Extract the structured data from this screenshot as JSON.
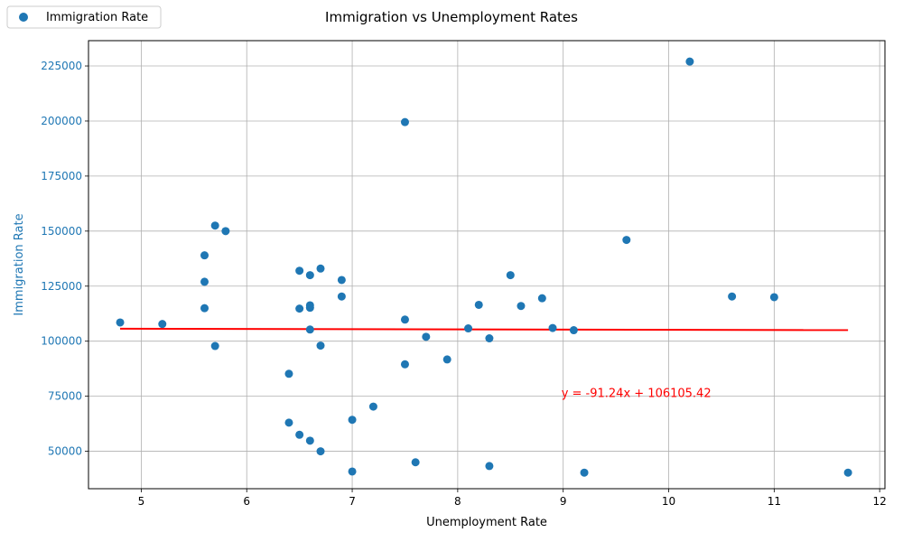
{
  "chart_data": {
    "type": "scatter",
    "title": "Immigration vs Unemployment Rates",
    "xlabel": "Unemployment Rate",
    "ylabel": "Immigration Rate",
    "xlim": [
      4.5,
      12.05
    ],
    "ylim": [
      33000,
      236500
    ],
    "xticks": [
      5,
      6,
      7,
      8,
      9,
      10,
      11,
      12
    ],
    "yticks": [
      50000,
      75000,
      100000,
      125000,
      150000,
      175000,
      200000,
      225000
    ],
    "grid": true,
    "legend": {
      "position": "top-left",
      "label": "Immigration Rate"
    },
    "colors": {
      "points": "#1f77b4",
      "trend": "#ff0000",
      "ylabel": "#1f77b4",
      "grid": "#b0b0b0"
    },
    "series": [
      {
        "name": "Immigration Rate",
        "points": [
          [
            4.8,
            108500
          ],
          [
            5.2,
            107800
          ],
          [
            5.6,
            139000
          ],
          [
            5.6,
            127000
          ],
          [
            5.6,
            115000
          ],
          [
            5.7,
            152500
          ],
          [
            5.7,
            97800
          ],
          [
            5.8,
            150000
          ],
          [
            6.4,
            85200
          ],
          [
            6.4,
            63000
          ],
          [
            6.5,
            132000
          ],
          [
            6.5,
            114800
          ],
          [
            6.5,
            57500
          ],
          [
            6.6,
            130000
          ],
          [
            6.6,
            116300
          ],
          [
            6.6,
            115200
          ],
          [
            6.6,
            105300
          ],
          [
            6.6,
            54800
          ],
          [
            6.7,
            133000
          ],
          [
            6.7,
            98000
          ],
          [
            6.7,
            50000
          ],
          [
            6.9,
            127800
          ],
          [
            6.9,
            120300
          ],
          [
            7.0,
            64300
          ],
          [
            7.0,
            40800
          ],
          [
            7.2,
            70300
          ],
          [
            7.5,
            199500
          ],
          [
            7.5,
            109800
          ],
          [
            7.5,
            89500
          ],
          [
            7.6,
            45000
          ],
          [
            7.7,
            102000
          ],
          [
            7.9,
            91700
          ],
          [
            8.1,
            105800
          ],
          [
            8.2,
            116500
          ],
          [
            8.3,
            101300
          ],
          [
            8.3,
            43300
          ],
          [
            8.5,
            130000
          ],
          [
            8.6,
            116000
          ],
          [
            8.8,
            119500
          ],
          [
            8.9,
            106000
          ],
          [
            9.1,
            105000
          ],
          [
            9.2,
            40300
          ],
          [
            9.6,
            146000
          ],
          [
            10.2,
            227000
          ],
          [
            10.6,
            120300
          ],
          [
            11.0,
            120000
          ],
          [
            11.7,
            40300
          ]
        ]
      }
    ],
    "trendline": {
      "slope": -91.24,
      "intercept": 106105.42,
      "x_range": [
        4.8,
        11.7
      ],
      "label": "y = -91.24x + 106105.42",
      "label_pos": [
        9.0,
        75000
      ]
    }
  }
}
